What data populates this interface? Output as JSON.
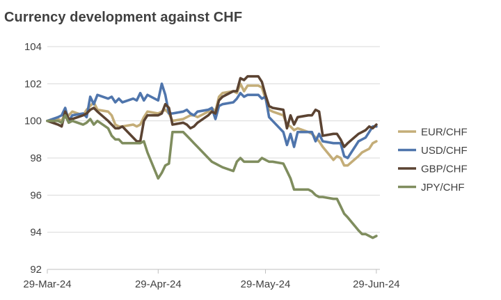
{
  "chart_data": {
    "type": "line",
    "title": "Currency development against CHF",
    "xlabel": "",
    "ylabel": "",
    "ylim": [
      92,
      104
    ],
    "y_ticks": [
      92,
      94,
      96,
      98,
      100,
      102,
      104
    ],
    "x_ticks": [
      "29-Mar-24",
      "29-Apr-24",
      "29-May-24",
      "29-Jun-24"
    ],
    "x_range": [
      "2024-03-29",
      "2024-06-30"
    ],
    "grid": "horizontal",
    "legend_position": "right",
    "series": [
      {
        "name": "EUR/CHF",
        "color": "#C4AD78",
        "points": [
          [
            "2024-03-29",
            100.0
          ],
          [
            "2024-04-01",
            100.1
          ],
          [
            "2024-04-02",
            100.0
          ],
          [
            "2024-04-03",
            100.4
          ],
          [
            "2024-04-04",
            100.3
          ],
          [
            "2024-04-05",
            100.5
          ],
          [
            "2024-04-08",
            100.3
          ],
          [
            "2024-04-09",
            100.6
          ],
          [
            "2024-04-10",
            100.8
          ],
          [
            "2024-04-11",
            101.0
          ],
          [
            "2024-04-12",
            100.6
          ],
          [
            "2024-04-15",
            100.5
          ],
          [
            "2024-04-16",
            100.3
          ],
          [
            "2024-04-17",
            99.8
          ],
          [
            "2024-04-18",
            99.7
          ],
          [
            "2024-04-19",
            99.7
          ],
          [
            "2024-04-22",
            99.8
          ],
          [
            "2024-04-23",
            99.7
          ],
          [
            "2024-04-24",
            99.8
          ],
          [
            "2024-04-25",
            100.2
          ],
          [
            "2024-04-26",
            100.5
          ],
          [
            "2024-04-29",
            100.4
          ],
          [
            "2024-04-30",
            100.5
          ],
          [
            "2024-05-01",
            100.6
          ],
          [
            "2024-05-02",
            100.4
          ],
          [
            "2024-05-03",
            100.0
          ],
          [
            "2024-05-06",
            100.1
          ],
          [
            "2024-05-07",
            100.2
          ],
          [
            "2024-05-08",
            100.3
          ],
          [
            "2024-05-09",
            100.3
          ],
          [
            "2024-05-10",
            100.2
          ],
          [
            "2024-05-13",
            100.5
          ],
          [
            "2024-05-14",
            100.7
          ],
          [
            "2024-05-15",
            100.5
          ],
          [
            "2024-05-16",
            101.3
          ],
          [
            "2024-05-17",
            101.5
          ],
          [
            "2024-05-20",
            101.6
          ],
          [
            "2024-05-21",
            101.5
          ],
          [
            "2024-05-22",
            102.0
          ],
          [
            "2024-05-23",
            101.6
          ],
          [
            "2024-05-24",
            101.9
          ],
          [
            "2024-05-27",
            101.9
          ],
          [
            "2024-05-28",
            101.8
          ],
          [
            "2024-05-29",
            101.2
          ],
          [
            "2024-05-30",
            100.6
          ],
          [
            "2024-05-31",
            100.5
          ],
          [
            "2024-06-03",
            100.3
          ],
          [
            "2024-06-04",
            99.8
          ],
          [
            "2024-06-05",
            99.7
          ],
          [
            "2024-06-06",
            99.5
          ],
          [
            "2024-06-07",
            99.6
          ],
          [
            "2024-06-10",
            99.4
          ],
          [
            "2024-06-11",
            99.3
          ],
          [
            "2024-06-12",
            99.1
          ],
          [
            "2024-06-13",
            98.9
          ],
          [
            "2024-06-14",
            98.6
          ],
          [
            "2024-06-17",
            97.9
          ],
          [
            "2024-06-18",
            98.1
          ],
          [
            "2024-06-19",
            98.0
          ],
          [
            "2024-06-20",
            97.6
          ],
          [
            "2024-06-21",
            97.6
          ],
          [
            "2024-06-24",
            98.1
          ],
          [
            "2024-06-25",
            98.3
          ],
          [
            "2024-06-26",
            98.4
          ],
          [
            "2024-06-27",
            98.5
          ],
          [
            "2024-06-28",
            98.8
          ],
          [
            "2024-06-29",
            98.9
          ]
        ]
      },
      {
        "name": "USD/CHF",
        "color": "#4F75AC",
        "points": [
          [
            "2024-03-29",
            100.0
          ],
          [
            "2024-04-01",
            100.2
          ],
          [
            "2024-04-02",
            100.3
          ],
          [
            "2024-04-03",
            100.7
          ],
          [
            "2024-04-04",
            100.0
          ],
          [
            "2024-04-05",
            100.3
          ],
          [
            "2024-04-08",
            100.4
          ],
          [
            "2024-04-09",
            100.2
          ],
          [
            "2024-04-10",
            101.3
          ],
          [
            "2024-04-11",
            100.9
          ],
          [
            "2024-04-12",
            101.4
          ],
          [
            "2024-04-15",
            101.2
          ],
          [
            "2024-04-16",
            101.3
          ],
          [
            "2024-04-17",
            101.0
          ],
          [
            "2024-04-18",
            101.2
          ],
          [
            "2024-04-19",
            101.0
          ],
          [
            "2024-04-22",
            101.2
          ],
          [
            "2024-04-23",
            101.1
          ],
          [
            "2024-04-24",
            101.5
          ],
          [
            "2024-04-25",
            101.1
          ],
          [
            "2024-04-26",
            101.4
          ],
          [
            "2024-04-29",
            101.1
          ],
          [
            "2024-04-30",
            102.0
          ],
          [
            "2024-05-01",
            101.4
          ],
          [
            "2024-05-02",
            100.4
          ],
          [
            "2024-05-03",
            100.4
          ],
          [
            "2024-05-06",
            100.5
          ],
          [
            "2024-05-07",
            100.6
          ],
          [
            "2024-05-08",
            100.4
          ],
          [
            "2024-05-09",
            100.3
          ],
          [
            "2024-05-10",
            100.5
          ],
          [
            "2024-05-13",
            100.6
          ],
          [
            "2024-05-14",
            100.7
          ],
          [
            "2024-05-15",
            100.1
          ],
          [
            "2024-05-16",
            100.8
          ],
          [
            "2024-05-17",
            100.9
          ],
          [
            "2024-05-20",
            101.0
          ],
          [
            "2024-05-21",
            101.2
          ],
          [
            "2024-05-22",
            101.5
          ],
          [
            "2024-05-23",
            101.3
          ],
          [
            "2024-05-24",
            101.4
          ],
          [
            "2024-05-27",
            101.4
          ],
          [
            "2024-05-28",
            101.2
          ],
          [
            "2024-05-29",
            101.3
          ],
          [
            "2024-05-30",
            100.2
          ],
          [
            "2024-05-31",
            100.0
          ],
          [
            "2024-06-03",
            99.4
          ],
          [
            "2024-06-04",
            98.7
          ],
          [
            "2024-06-05",
            99.3
          ],
          [
            "2024-06-06",
            98.6
          ],
          [
            "2024-06-07",
            99.4
          ],
          [
            "2024-06-10",
            99.4
          ],
          [
            "2024-06-11",
            99.4
          ],
          [
            "2024-06-12",
            98.9
          ],
          [
            "2024-06-13",
            99.3
          ],
          [
            "2024-06-14",
            98.9
          ],
          [
            "2024-06-17",
            98.8
          ],
          [
            "2024-06-18",
            98.8
          ],
          [
            "2024-06-19",
            98.8
          ],
          [
            "2024-06-20",
            98.1
          ],
          [
            "2024-06-21",
            98.0
          ],
          [
            "2024-06-24",
            98.9
          ],
          [
            "2024-06-25",
            99.0
          ],
          [
            "2024-06-26",
            99.1
          ],
          [
            "2024-06-27",
            99.4
          ],
          [
            "2024-06-28",
            99.7
          ],
          [
            "2024-06-29",
            99.7
          ]
        ]
      },
      {
        "name": "GBP/CHF",
        "color": "#5B4332",
        "points": [
          [
            "2024-03-29",
            100.0
          ],
          [
            "2024-04-01",
            99.8
          ],
          [
            "2024-04-02",
            99.7
          ],
          [
            "2024-04-03",
            100.5
          ],
          [
            "2024-04-04",
            100.1
          ],
          [
            "2024-04-05",
            100.1
          ],
          [
            "2024-04-08",
            100.3
          ],
          [
            "2024-04-09",
            100.4
          ],
          [
            "2024-04-10",
            100.6
          ],
          [
            "2024-04-11",
            100.7
          ],
          [
            "2024-04-12",
            100.5
          ],
          [
            "2024-04-15",
            100.0
          ],
          [
            "2024-04-16",
            99.8
          ],
          [
            "2024-04-17",
            99.6
          ],
          [
            "2024-04-18",
            99.6
          ],
          [
            "2024-04-19",
            99.7
          ],
          [
            "2024-04-22",
            99.1
          ],
          [
            "2024-04-23",
            98.9
          ],
          [
            "2024-04-24",
            98.9
          ],
          [
            "2024-04-25",
            100.0
          ],
          [
            "2024-04-26",
            100.3
          ],
          [
            "2024-04-29",
            100.3
          ],
          [
            "2024-04-30",
            100.4
          ],
          [
            "2024-05-01",
            100.9
          ],
          [
            "2024-05-02",
            100.7
          ],
          [
            "2024-05-03",
            99.8
          ],
          [
            "2024-05-06",
            99.9
          ],
          [
            "2024-05-07",
            99.8
          ],
          [
            "2024-05-08",
            99.6
          ],
          [
            "2024-05-09",
            99.7
          ],
          [
            "2024-05-10",
            99.9
          ],
          [
            "2024-05-13",
            100.3
          ],
          [
            "2024-05-14",
            100.5
          ],
          [
            "2024-05-15",
            100.4
          ],
          [
            "2024-05-16",
            101.1
          ],
          [
            "2024-05-17",
            101.3
          ],
          [
            "2024-05-20",
            101.6
          ],
          [
            "2024-05-21",
            101.6
          ],
          [
            "2024-05-22",
            102.3
          ],
          [
            "2024-05-23",
            102.2
          ],
          [
            "2024-05-24",
            102.4
          ],
          [
            "2024-05-27",
            102.4
          ],
          [
            "2024-05-28",
            102.1
          ],
          [
            "2024-05-29",
            101.4
          ],
          [
            "2024-05-30",
            100.8
          ],
          [
            "2024-05-31",
            100.7
          ],
          [
            "2024-06-03",
            100.6
          ],
          [
            "2024-06-04",
            99.6
          ],
          [
            "2024-06-05",
            100.3
          ],
          [
            "2024-06-06",
            99.8
          ],
          [
            "2024-06-07",
            100.2
          ],
          [
            "2024-06-10",
            100.3
          ],
          [
            "2024-06-11",
            100.3
          ],
          [
            "2024-06-12",
            100.6
          ],
          [
            "2024-06-13",
            100.5
          ],
          [
            "2024-06-14",
            99.2
          ],
          [
            "2024-06-17",
            99.3
          ],
          [
            "2024-06-18",
            99.3
          ],
          [
            "2024-06-19",
            99.0
          ],
          [
            "2024-06-20",
            98.6
          ],
          [
            "2024-06-21",
            98.8
          ],
          [
            "2024-06-24",
            99.3
          ],
          [
            "2024-06-25",
            99.4
          ],
          [
            "2024-06-26",
            99.5
          ],
          [
            "2024-06-27",
            99.7
          ],
          [
            "2024-06-28",
            99.6
          ],
          [
            "2024-06-29",
            99.8
          ]
        ]
      },
      {
        "name": "JPY/CHF",
        "color": "#7F8D5E",
        "points": [
          [
            "2024-03-29",
            100.0
          ],
          [
            "2024-04-01",
            100.0
          ],
          [
            "2024-04-02",
            99.9
          ],
          [
            "2024-04-03",
            100.3
          ],
          [
            "2024-04-04",
            99.9
          ],
          [
            "2024-04-05",
            100.0
          ],
          [
            "2024-04-08",
            99.8
          ],
          [
            "2024-04-09",
            99.9
          ],
          [
            "2024-04-10",
            100.1
          ],
          [
            "2024-04-11",
            99.8
          ],
          [
            "2024-04-12",
            100.0
          ],
          [
            "2024-04-15",
            99.6
          ],
          [
            "2024-04-16",
            99.2
          ],
          [
            "2024-04-17",
            99.0
          ],
          [
            "2024-04-18",
            99.0
          ],
          [
            "2024-04-19",
            98.8
          ],
          [
            "2024-04-22",
            98.8
          ],
          [
            "2024-04-23",
            98.8
          ],
          [
            "2024-04-24",
            98.8
          ],
          [
            "2024-04-25",
            98.9
          ],
          [
            "2024-04-26",
            98.3
          ],
          [
            "2024-04-29",
            96.9
          ],
          [
            "2024-04-30",
            97.2
          ],
          [
            "2024-05-01",
            97.6
          ],
          [
            "2024-05-02",
            97.7
          ],
          [
            "2024-05-03",
            99.4
          ],
          [
            "2024-05-06",
            99.4
          ],
          [
            "2024-05-07",
            99.2
          ],
          [
            "2024-05-08",
            99.0
          ],
          [
            "2024-05-09",
            98.8
          ],
          [
            "2024-05-10",
            98.6
          ],
          [
            "2024-05-13",
            98.0
          ],
          [
            "2024-05-14",
            97.8
          ],
          [
            "2024-05-15",
            97.7
          ],
          [
            "2024-05-16",
            97.6
          ],
          [
            "2024-05-17",
            97.5
          ],
          [
            "2024-05-20",
            97.3
          ],
          [
            "2024-05-21",
            97.8
          ],
          [
            "2024-05-22",
            98.0
          ],
          [
            "2024-05-23",
            97.8
          ],
          [
            "2024-05-24",
            97.8
          ],
          [
            "2024-05-27",
            97.8
          ],
          [
            "2024-05-28",
            98.0
          ],
          [
            "2024-05-29",
            97.9
          ],
          [
            "2024-05-30",
            97.8
          ],
          [
            "2024-05-31",
            97.8
          ],
          [
            "2024-06-03",
            97.7
          ],
          [
            "2024-06-04",
            97.3
          ],
          [
            "2024-06-05",
            96.9
          ],
          [
            "2024-06-06",
            96.3
          ],
          [
            "2024-06-07",
            96.3
          ],
          [
            "2024-06-10",
            96.3
          ],
          [
            "2024-06-11",
            96.2
          ],
          [
            "2024-06-12",
            96.0
          ],
          [
            "2024-06-13",
            95.9
          ],
          [
            "2024-06-14",
            95.9
          ],
          [
            "2024-06-17",
            95.8
          ],
          [
            "2024-06-18",
            95.8
          ],
          [
            "2024-06-19",
            95.4
          ],
          [
            "2024-06-20",
            95.0
          ],
          [
            "2024-06-21",
            94.8
          ],
          [
            "2024-06-24",
            94.1
          ],
          [
            "2024-06-25",
            93.9
          ],
          [
            "2024-06-26",
            93.9
          ],
          [
            "2024-06-27",
            93.8
          ],
          [
            "2024-06-28",
            93.7
          ],
          [
            "2024-06-29",
            93.8
          ]
        ]
      }
    ]
  }
}
